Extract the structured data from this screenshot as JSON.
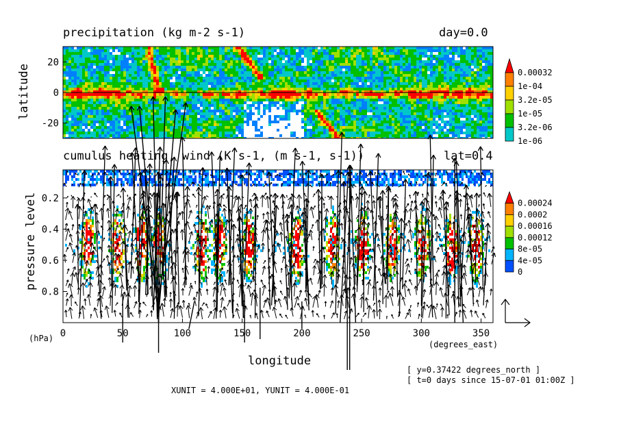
{
  "top_panel": {
    "title": "precipitation (kg m-2 s-1)",
    "right_label": "day=0.0",
    "ylabel": "latitude"
  },
  "bottom_panel": {
    "title": "cumulus heating, wind (K s-1, (m s-1, s-1))",
    "right_label": "lat=0.4",
    "ylabel": "pressure level",
    "yunit": "(hPa)",
    "xlabel": "longitude",
    "xunit": "(degrees_east)",
    "scale_text": "XUNIT = 4.000E+01, YUNIT = 4.000E-01"
  },
  "info": {
    "line1": "[ y=0.37422 degrees_north ]",
    "line2": "[ t=0 days since 15-07-01 01:00Z ]"
  },
  "colors": {
    "precip_bins": [
      "#0080ff",
      "#00c8c8",
      "#00c000",
      "#a0e000",
      "#ffd000",
      "#ff8000",
      "#ff0000"
    ],
    "heating_bins": [
      "#0050ff",
      "#00b4ff",
      "#00c000",
      "#a0e000",
      "#ffd000",
      "#ff8000",
      "#ff0000"
    ]
  },
  "chart_data": [
    {
      "type": "heatmap",
      "title": "precipitation (kg m-2 s-1)",
      "xlabel": "",
      "ylabel": "latitude",
      "xlim": [
        0,
        360
      ],
      "ylim": [
        -30,
        30
      ],
      "yticks": [
        -20,
        0,
        20
      ],
      "legend": {
        "placement": "right",
        "labels": [
          "0.00032",
          "1e-04",
          "3.2e-05",
          "1e-05",
          "3.2e-06",
          "1e-06"
        ]
      },
      "equator_line": 0,
      "features": [
        {
          "kind": "ITCZ band",
          "lat": 0,
          "lon_range": [
            0,
            360
          ]
        },
        {
          "kind": "rain streak",
          "from": [
            70,
            30
          ],
          "to": [
            80,
            0
          ]
        },
        {
          "kind": "rain streak",
          "from": [
            230,
            -30
          ],
          "to": [
            210,
            -10
          ]
        },
        {
          "kind": "rain streak",
          "from": [
            145,
            30
          ],
          "to": [
            165,
            10
          ]
        }
      ]
    },
    {
      "type": "heatmap",
      "title": "cumulus heating, wind (K s-1, (m s-1, s-1))",
      "xlabel": "longitude",
      "ylabel": "pressure level",
      "xlim": [
        0,
        360
      ],
      "ylim": [
        1.0,
        0.02
      ],
      "xticks": [
        0,
        50,
        100,
        150,
        200,
        250,
        300,
        350
      ],
      "yticks": [
        0.2,
        0.4,
        0.6,
        0.8
      ],
      "legend": {
        "placement": "right",
        "labels": [
          "0.00024",
          "0.0002",
          "0.00016",
          "0.00012",
          "8e-05",
          "4e-05",
          "0"
        ]
      },
      "heating_maxima_lon": [
        20,
        45,
        65,
        80,
        115,
        130,
        155,
        195,
        225,
        250,
        275,
        300,
        325,
        345
      ],
      "wind_scale": {
        "xunit": 40.0,
        "yunit": 0.4
      }
    }
  ]
}
